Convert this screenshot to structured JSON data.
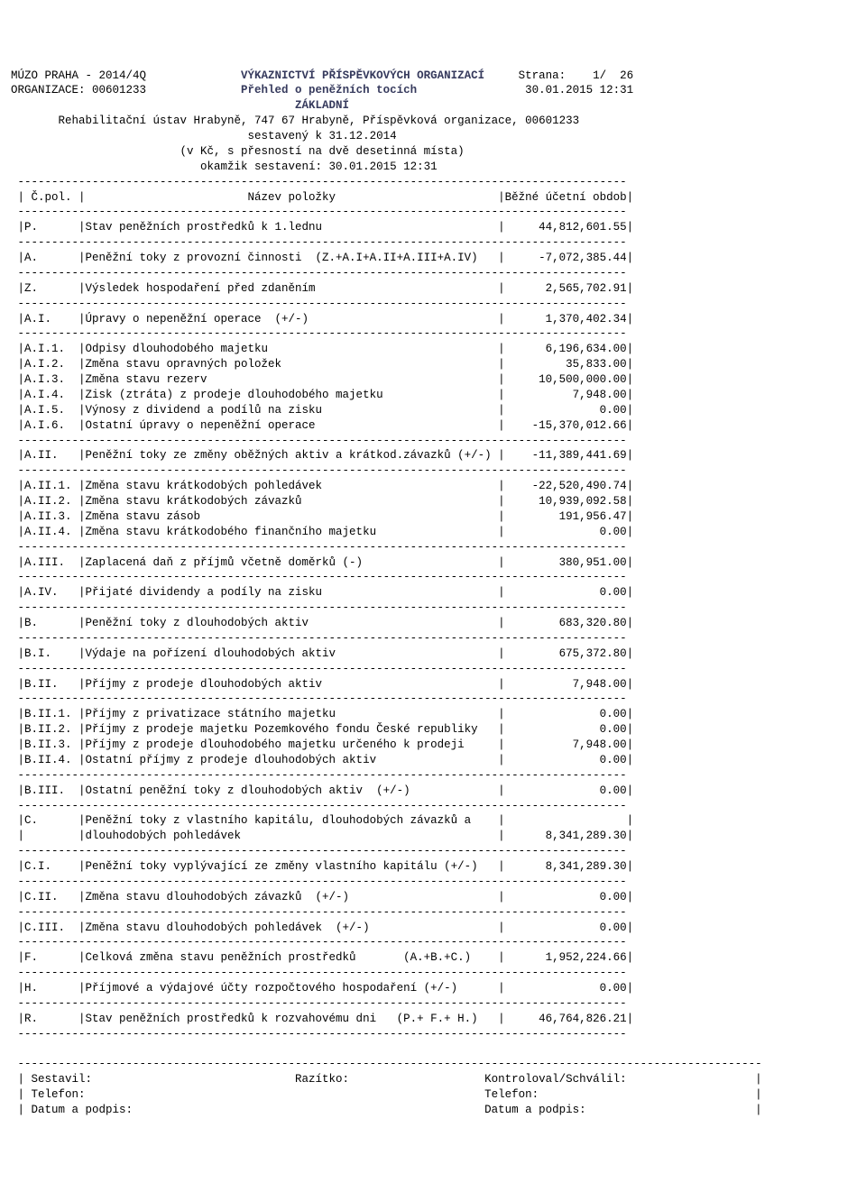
{
  "layout": {
    "total_width": 90,
    "col_code_w": 8,
    "col_val_w": 18
  },
  "hdr": {
    "left1": "MÚZO PRAHA - 2014/4Q",
    "mid1": "VÝKAZNICTVÍ PŘÍSPĚVKOVÝCH ORGANIZACÍ",
    "right1": "Strana:    1/  26",
    "left2": "ORGANIZACE: 00601233",
    "mid2": "Přehled o peněžních tocích",
    "right2": "30.01.2015 12:31",
    "mid3": "ZÁKLADNÍ",
    "mid4": "Rehabilitační ústav Hrabyně, 747 67 Hrabyně, Příspěvková organizace, 00601233",
    "mid5": "sestavený k 31.12.2014",
    "mid6": "(v Kč, s přesností na dvě desetinná místa)",
    "mid7": "okamžik sestavení: 30.01.2015 12:31"
  },
  "colhdr": {
    "code": "Č.pol.",
    "name": "Název položky",
    "val": "Běžné účetní období"
  },
  "rows": [
    {
      "sep": true
    },
    {
      "t": "h",
      "l": "colhdr.code",
      "m": "colhdr.name",
      "r": "colhdr.val"
    },
    {
      "sep": true
    },
    {
      "c": "P.",
      "n": "Stav peněžních prostředků k 1.lednu",
      "v": "44,812,601.55"
    },
    {
      "sep": true
    },
    {
      "c": "A.",
      "n": "Peněžní toky z provozní činnosti  (Z.+A.I+A.II+A.III+A.IV)",
      "v": "-7,072,385.44"
    },
    {
      "sep": true
    },
    {
      "c": "Z.",
      "n": "Výsledek hospodaření před zdaněním",
      "v": "2,565,702.91"
    },
    {
      "sep": true
    },
    {
      "c": "A.I.",
      "n": "Úpravy o nepeněžní operace  (+/-)",
      "v": "1,370,402.34"
    },
    {
      "sep": true
    },
    {
      "c": "A.I.1.",
      "n": "Odpisy dlouhodobého majetku",
      "v": "6,196,634.00"
    },
    {
      "c": "A.I.2.",
      "n": "Změna stavu opravných položek",
      "v": "35,833.00"
    },
    {
      "c": "A.I.3.",
      "n": "Změna stavu rezerv",
      "v": "10,500,000.00"
    },
    {
      "c": "A.I.4.",
      "n": "Zisk (ztráta) z prodeje dlouhodobého majetku",
      "v": "7,948.00"
    },
    {
      "c": "A.I.5.",
      "n": "Výnosy z dividend a podílů na zisku",
      "v": "0.00"
    },
    {
      "c": "A.I.6.",
      "n": "Ostatní úpravy o nepeněžní operace",
      "v": "-15,370,012.66"
    },
    {
      "sep": true
    },
    {
      "c": "A.II.",
      "n": "Peněžní toky ze změny oběžných aktiv a krátkod.závazků (+/-)",
      "v": "-11,389,441.69"
    },
    {
      "sep": true
    },
    {
      "c": "A.II.1.",
      "n": "Změna stavu krátkodobých pohledávek",
      "v": "-22,520,490.74"
    },
    {
      "c": "A.II.2.",
      "n": "Změna stavu krátkodobých závazků",
      "v": "10,939,092.58"
    },
    {
      "c": "A.II.3.",
      "n": "Změna stavu zásob",
      "v": "191,956.47"
    },
    {
      "c": "A.II.4.",
      "n": "Změna stavu krátkodobého finančního majetku",
      "v": "0.00"
    },
    {
      "sep": true
    },
    {
      "c": "A.III.",
      "n": "Zaplacená daň z příjmů včetně doměrků (-)",
      "v": "380,951.00"
    },
    {
      "sep": true
    },
    {
      "c": "A.IV.",
      "n": "Přijaté dividendy a podíly na zisku",
      "v": "0.00"
    },
    {
      "sep": true
    },
    {
      "c": "B.",
      "n": "Peněžní toky z dlouhodobých aktiv",
      "v": "683,320.80"
    },
    {
      "sep": true
    },
    {
      "c": "B.I.",
      "n": "Výdaje na pořízení dlouhodobých aktiv",
      "v": "675,372.80"
    },
    {
      "sep": true
    },
    {
      "c": "B.II.",
      "n": "Příjmy z prodeje dlouhodobých aktiv",
      "v": "7,948.00"
    },
    {
      "sep": true
    },
    {
      "c": "B.II.1.",
      "n": "Příjmy z privatizace státního majetku",
      "v": "0.00"
    },
    {
      "c": "B.II.2.",
      "n": "Příjmy z prodeje majetku Pozemkového fondu České republiky",
      "v": "0.00"
    },
    {
      "c": "B.II.3.",
      "n": "Příjmy z prodeje dlouhodobého majetku určeného k prodeji",
      "v": "7,948.00"
    },
    {
      "c": "B.II.4.",
      "n": "Ostatní příjmy z prodeje dlouhodobých aktiv",
      "v": "0.00"
    },
    {
      "sep": true
    },
    {
      "c": "B.III.",
      "n": "Ostatní peněžní toky z dlouhodobých aktiv  (+/-)",
      "v": "0.00"
    },
    {
      "sep": true
    },
    {
      "c": "C.",
      "n": "Peněžní toky z vlastního kapitálu, dlouhodobých závazků a",
      "v": ""
    },
    {
      "c": "",
      "n": "dlouhodobých pohledávek",
      "v": "8,341,289.30"
    },
    {
      "sep": true
    },
    {
      "c": "C.I.",
      "n": "Peněžní toky vyplývající ze změny vlastního kapitálu (+/-)",
      "v": "8,341,289.30"
    },
    {
      "sep": true
    },
    {
      "c": "C.II.",
      "n": "Změna stavu dlouhodobých závazků  (+/-)",
      "v": "0.00"
    },
    {
      "sep": true
    },
    {
      "c": "C.III.",
      "n": "Změna stavu dlouhodobých pohledávek  (+/-)",
      "v": "0.00"
    },
    {
      "sep": true
    },
    {
      "c": "F.",
      "n": "Celková změna stavu peněžních prostředků       (A.+B.+C.)",
      "v": "1,952,224.66"
    },
    {
      "sep": true
    },
    {
      "c": "H.",
      "n": "Příjmové a výdajové účty rozpočtového hospodaření (+/-)",
      "v": "0.00"
    },
    {
      "sep": true
    },
    {
      "c": "R.",
      "n": "Stav peněžních prostředků k rozvahovému dni   (P.+ F.+ H.)",
      "v": "46,764,826.21"
    },
    {
      "sep": true
    }
  ],
  "footer": {
    "top_sep_w": 110,
    "col1_w": 40,
    "col2_w": 28,
    "l1a": "Sestavil:",
    "l1b": "Razítko:",
    "l1c": "Kontroloval/Schválil:",
    "l2a": "Telefon:",
    "l2b": "",
    "l2c": "Telefon:",
    "l3a": "Datum a podpis:",
    "l3b": "",
    "l3c": "Datum a podpis:"
  }
}
